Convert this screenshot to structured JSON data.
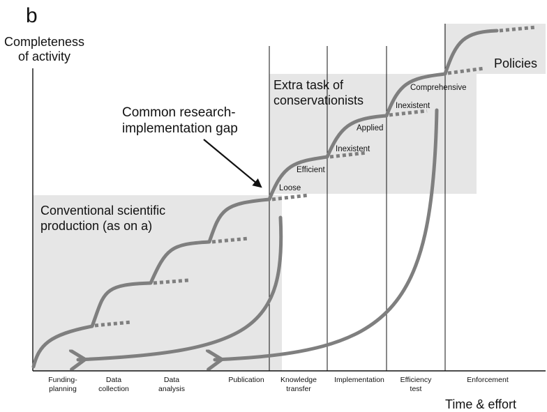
{
  "panel_letter": "b",
  "axes": {
    "y_label": [
      "Completeness",
      "of activity"
    ],
    "x_label": "Time & effort"
  },
  "regions": {
    "conventional": [
      "Conventional scientific",
      "production (as on a)"
    ],
    "extra": [
      "Extra task of",
      "conservationists"
    ],
    "policies": "Policies"
  },
  "callout": [
    "Common research-",
    "implementation gap"
  ],
  "step_labels": {
    "loose": "Loose",
    "efficient": "Efficient",
    "inexistent_1": "Inexistent",
    "applied": "Applied",
    "inexistent_2": "Inexistent",
    "comprehensive": "Comprehensive"
  },
  "stages": [
    [
      "Funding-",
      "planning"
    ],
    [
      "Data",
      "collection"
    ],
    [
      "Data",
      "analysis"
    ],
    [
      "Publication"
    ],
    [
      "Knowledge",
      "transfer"
    ],
    [
      "Implementation"
    ],
    [
      "Efficiency",
      "test"
    ],
    [
      "Enforcement"
    ]
  ],
  "colors": {
    "curve": "#7f7f7f",
    "region_fill": "#e6e6e6",
    "line": "#111111"
  }
}
